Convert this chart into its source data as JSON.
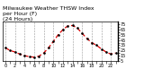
{
  "title": "Milwaukee Weather THSW Index\nper Hour (F)\n(24 Hours)",
  "hours": [
    0,
    1,
    2,
    3,
    4,
    5,
    6,
    7,
    8,
    9,
    10,
    11,
    12,
    13,
    14,
    15,
    16,
    17,
    18,
    19,
    20,
    21,
    22,
    23
  ],
  "values": [
    30,
    25,
    22,
    18,
    15,
    13,
    12,
    14,
    20,
    30,
    42,
    55,
    65,
    72,
    73,
    68,
    58,
    48,
    40,
    35,
    28,
    22,
    18,
    20
  ],
  "line_color": "#dd0000",
  "marker_color": "#000000",
  "bg_color": "#ffffff",
  "plot_bg": "#ffffff",
  "ylim": [
    5,
    80
  ],
  "yticks": [
    5,
    10,
    15,
    20,
    25,
    30,
    35,
    40,
    45,
    50,
    55,
    60,
    65,
    70,
    75
  ],
  "ytick_labels": [
    "5",
    "",
    "15",
    "",
    "25",
    "",
    "35",
    "",
    "45",
    "",
    "55",
    "",
    "65",
    "",
    "75"
  ],
  "grid_color": "#999999",
  "title_fontsize": 4.5,
  "tick_fontsize": 3.5,
  "line_width": 0.9,
  "marker_size": 1.8
}
